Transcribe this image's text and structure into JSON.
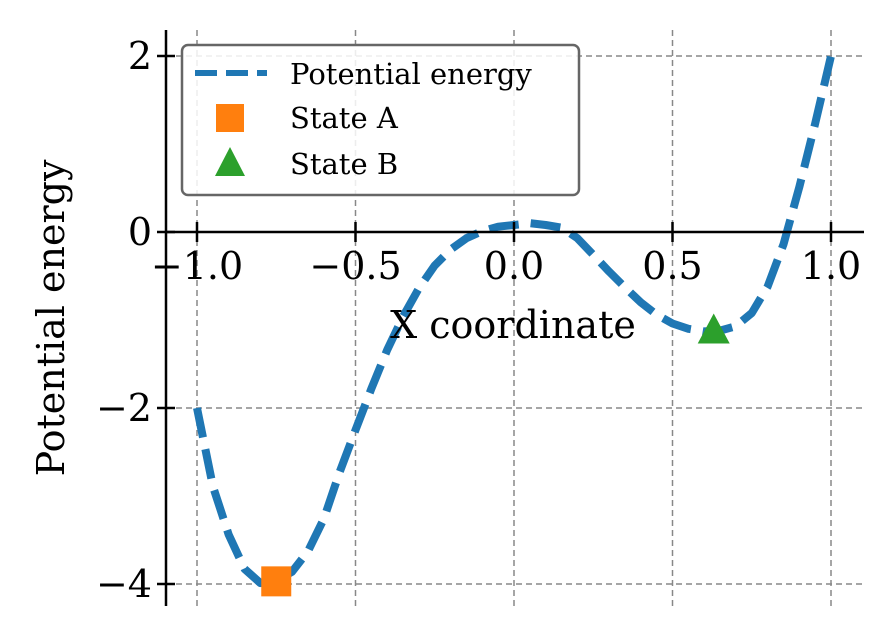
{
  "chart_data": {
    "type": "line",
    "title": "",
    "xlabel": "X coordinate",
    "ylabel": "Potential energy",
    "xlim": [
      -1.1,
      1.1
    ],
    "ylim": [
      -4.25,
      2.25
    ],
    "xticks": [
      -1.0,
      -0.5,
      0.0,
      0.5,
      1.0
    ],
    "xtick_labels": [
      "−1.0",
      "−0.5",
      "0.0",
      "0.5",
      "1.0"
    ],
    "yticks": [
      -4,
      -2,
      0,
      2
    ],
    "ytick_labels": [
      "−4",
      "−2",
      "0",
      "2"
    ],
    "grid": true,
    "legend_position": "top-left",
    "series": [
      {
        "name": "Potential energy",
        "kind": "line",
        "style": "dashed",
        "color": "#1f77b4",
        "x": [
          -1.0,
          -0.95,
          -0.9,
          -0.85,
          -0.8,
          -0.75,
          -0.7,
          -0.65,
          -0.6,
          -0.55,
          -0.5,
          -0.45,
          -0.4,
          -0.35,
          -0.3,
          -0.25,
          -0.2,
          -0.15,
          -0.1,
          -0.05,
          0.0,
          0.05,
          0.1,
          0.15,
          0.2,
          0.25,
          0.3,
          0.35,
          0.4,
          0.45,
          0.5,
          0.55,
          0.6,
          0.65,
          0.7,
          0.75,
          0.8,
          0.85,
          0.9,
          0.95,
          1.0
        ],
        "y": [
          -2.0,
          -2.89,
          -3.44,
          -3.83,
          -3.99,
          -3.96,
          -3.86,
          -3.63,
          -3.26,
          -2.73,
          -2.25,
          -1.78,
          -1.34,
          -0.96,
          -0.64,
          -0.38,
          -0.2,
          -0.07,
          0.01,
          0.06,
          0.08,
          0.1,
          0.08,
          0.05,
          -0.07,
          -0.26,
          -0.45,
          -0.63,
          -0.8,
          -0.94,
          -1.04,
          -1.1,
          -1.13,
          -1.12,
          -1.07,
          -0.92,
          -0.62,
          -0.14,
          0.51,
          1.23,
          2.0
        ]
      },
      {
        "name": "State A",
        "kind": "marker",
        "marker": "square",
        "color": "#ff7f0e",
        "x": [
          -0.75
        ],
        "y": [
          -3.97
        ]
      },
      {
        "name": "State B",
        "kind": "marker",
        "marker": "triangle",
        "color": "#2ca02c",
        "x": [
          0.63
        ],
        "y": [
          -1.12
        ]
      }
    ]
  }
}
